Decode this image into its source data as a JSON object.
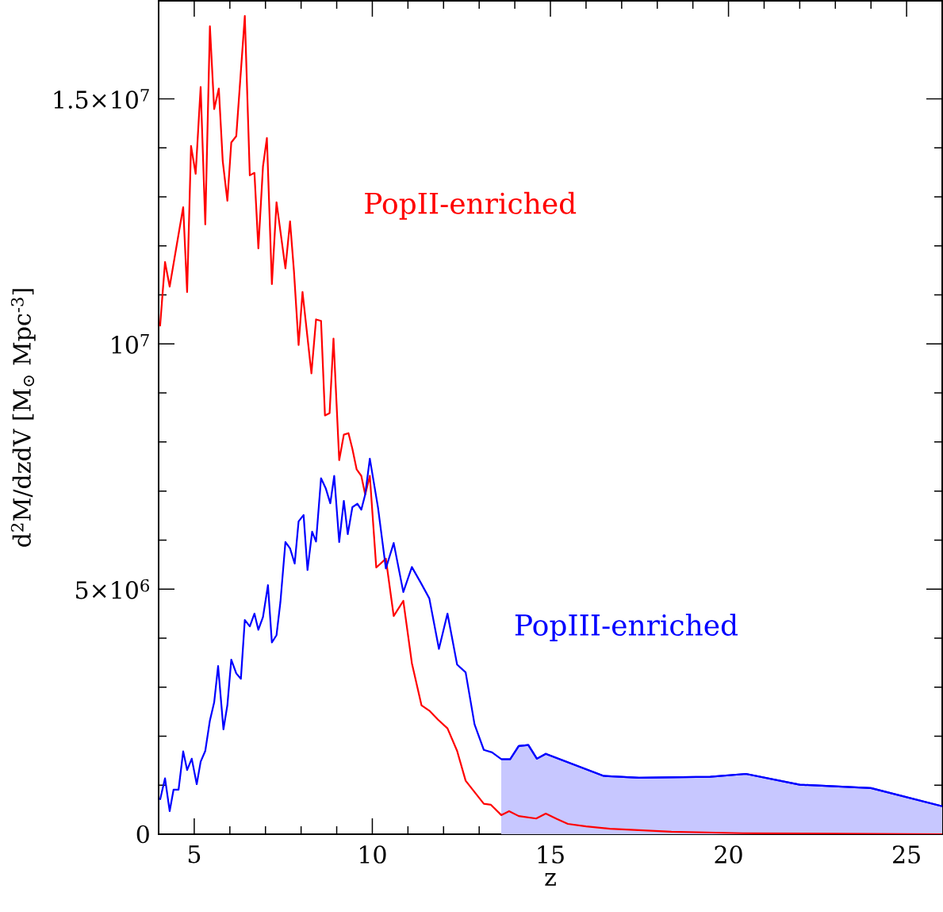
{
  "chart_data": {
    "type": "line",
    "xlabel": "z",
    "ylabel": "d$^{2}$M/dzdV [M$_{⊙}$ Mpc$^{-3}$]",
    "xlim": [
      4,
      26
    ],
    "ylim": [
      0,
      17000000
    ],
    "xticks": [
      5,
      10,
      15,
      20,
      25
    ],
    "yticks": [
      {
        "value": 0,
        "label": "0"
      },
      {
        "value": 5000000,
        "label": "5×10$^{6}$"
      },
      {
        "value": 10000000,
        "label": "10$^{7}$"
      },
      {
        "value": 15000000,
        "label": "1.5×10$^{7}$"
      }
    ],
    "series": [
      {
        "name": "PopII-enriched",
        "color": "#ff0000",
        "x": [
          4.04,
          4.18,
          4.31,
          4.53,
          4.69,
          4.8,
          4.91,
          5.04,
          5.18,
          5.31,
          5.44,
          5.56,
          5.69,
          5.8,
          5.93,
          6.04,
          6.18,
          6.42,
          6.56,
          6.69,
          6.8,
          6.93,
          7.04,
          7.18,
          7.31,
          7.56,
          7.69,
          7.8,
          7.93,
          8.04,
          8.29,
          8.42,
          8.56,
          8.67,
          8.8,
          8.91,
          9.07,
          9.2,
          9.33,
          9.44,
          9.56,
          9.69,
          9.8,
          9.93,
          10.11,
          10.38,
          10.6,
          10.87,
          11.11,
          11.38,
          11.6,
          11.84,
          12.11,
          12.38,
          12.62,
          12.87,
          13.13,
          13.33,
          13.62,
          13.84,
          14.11,
          14.6,
          14.87,
          15.18,
          15.49,
          16.0,
          16.67,
          18.4,
          20.4,
          26.0
        ],
        "values": [
          10360000,
          11670000,
          11170000,
          12110000,
          12790000,
          11060000,
          14040000,
          13470000,
          15240000,
          12440000,
          16480000,
          14790000,
          15210000,
          13730000,
          12920000,
          14110000,
          14240000,
          16690000,
          13440000,
          13490000,
          11950000,
          13620000,
          14200000,
          11220000,
          12890000,
          11540000,
          12500000,
          11480000,
          9980000,
          11060000,
          9400000,
          10500000,
          10470000,
          8540000,
          8590000,
          10110000,
          7630000,
          8150000,
          8180000,
          7860000,
          7440000,
          7310000,
          6930000,
          7310000,
          5440000,
          5620000,
          4450000,
          4760000,
          3490000,
          2630000,
          2520000,
          2340000,
          2160000,
          1700000,
          1090000,
          860000,
          620000,
          600000,
          390000,
          470000,
          370000,
          320000,
          420000,
          310000,
          210000,
          160000,
          110000,
          50000,
          20000,
          0
        ]
      },
      {
        "name": "PopIII-enriched",
        "color": "#0000ff",
        "x": [
          4.04,
          4.18,
          4.31,
          4.42,
          4.56,
          4.69,
          4.8,
          4.93,
          5.07,
          5.18,
          5.31,
          5.44,
          5.56,
          5.67,
          5.82,
          5.93,
          6.04,
          6.18,
          6.31,
          6.42,
          6.56,
          6.69,
          6.8,
          6.93,
          7.07,
          7.18,
          7.31,
          7.42,
          7.56,
          7.69,
          7.82,
          7.93,
          8.07,
          8.18,
          8.31,
          8.42,
          8.56,
          8.69,
          8.82,
          8.93,
          9.07,
          9.2,
          9.31,
          9.44,
          9.58,
          9.69,
          9.8,
          9.93,
          10.16,
          10.38,
          10.6,
          10.87,
          11.11,
          11.36,
          11.6,
          11.87,
          12.11,
          12.38,
          12.62,
          12.87,
          13.13,
          13.36,
          13.62,
          13.87,
          14.11,
          14.38,
          14.62,
          14.87,
          16.49,
          17.49,
          19.49,
          20.49,
          22.0,
          24.0,
          26.0
        ],
        "values": [
          700000,
          1140000,
          470000,
          910000,
          910000,
          1690000,
          1310000,
          1540000,
          1020000,
          1480000,
          1700000,
          2320000,
          2690000,
          3430000,
          2140000,
          2630000,
          3560000,
          3280000,
          3170000,
          4370000,
          4240000,
          4500000,
          4170000,
          4430000,
          5080000,
          3910000,
          4060000,
          4740000,
          5960000,
          5830000,
          5520000,
          6380000,
          6510000,
          5390000,
          6170000,
          5970000,
          7260000,
          7060000,
          6750000,
          7310000,
          5960000,
          6800000,
          6120000,
          6670000,
          6740000,
          6620000,
          6930000,
          7660000,
          6660000,
          5420000,
          5940000,
          4940000,
          5450000,
          5130000,
          4810000,
          3780000,
          4500000,
          3460000,
          3300000,
          2240000,
          1720000,
          1670000,
          1530000,
          1530000,
          1800000,
          1820000,
          1540000,
          1640000,
          1190000,
          1150000,
          1170000,
          1230000,
          1010000,
          940000,
          570000
        ]
      },
      {
        "type": "area",
        "color": "#0000ff",
        "x": [
          13.62,
          13.87,
          14.11,
          14.38,
          14.62,
          14.87,
          16.49,
          17.49,
          19.49,
          20.49,
          22.0,
          24.0,
          26.0
        ],
        "values": [
          1530000,
          1530000,
          1800000,
          1820000,
          1540000,
          1640000,
          1190000,
          1150000,
          1170000,
          1230000,
          1010000,
          940000,
          570000
        ]
      }
    ]
  }
}
